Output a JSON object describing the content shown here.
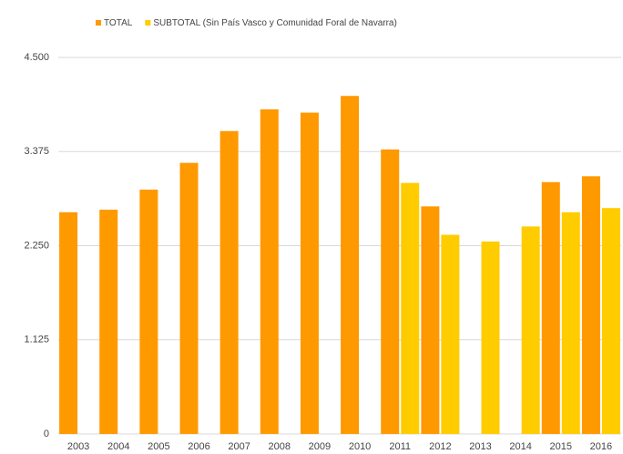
{
  "chart_data": {
    "type": "bar",
    "categories": [
      "2003",
      "2004",
      "2005",
      "2006",
      "2007",
      "2008",
      "2009",
      "2010",
      "2011",
      "2012",
      "2013",
      "2014",
      "2015",
      "2016"
    ],
    "series": [
      {
        "name": "TOTAL",
        "color": "#ff9900",
        "values": [
          2650,
          2680,
          2920,
          3240,
          3620,
          3880,
          3840,
          4040,
          3400,
          2720,
          null,
          null,
          3010,
          3080
        ]
      },
      {
        "name": "SUBTOTAL (Sin País Vasco y Comunidad Foral de Navarra)",
        "color": "#ffcc00",
        "values": [
          null,
          null,
          null,
          null,
          null,
          null,
          null,
          null,
          3000,
          2380,
          2300,
          2480,
          2650,
          2700
        ]
      }
    ],
    "ylim": [
      0,
      4500
    ],
    "yticks": [
      0,
      {
        "value": 1125,
        "label": "1.125"
      },
      {
        "value": 2250,
        "label": "2.250"
      },
      {
        "value": 3375,
        "label": "3.375"
      },
      {
        "value": 4500,
        "label": "4.500"
      }
    ],
    "grid": true,
    "legend": "top"
  }
}
